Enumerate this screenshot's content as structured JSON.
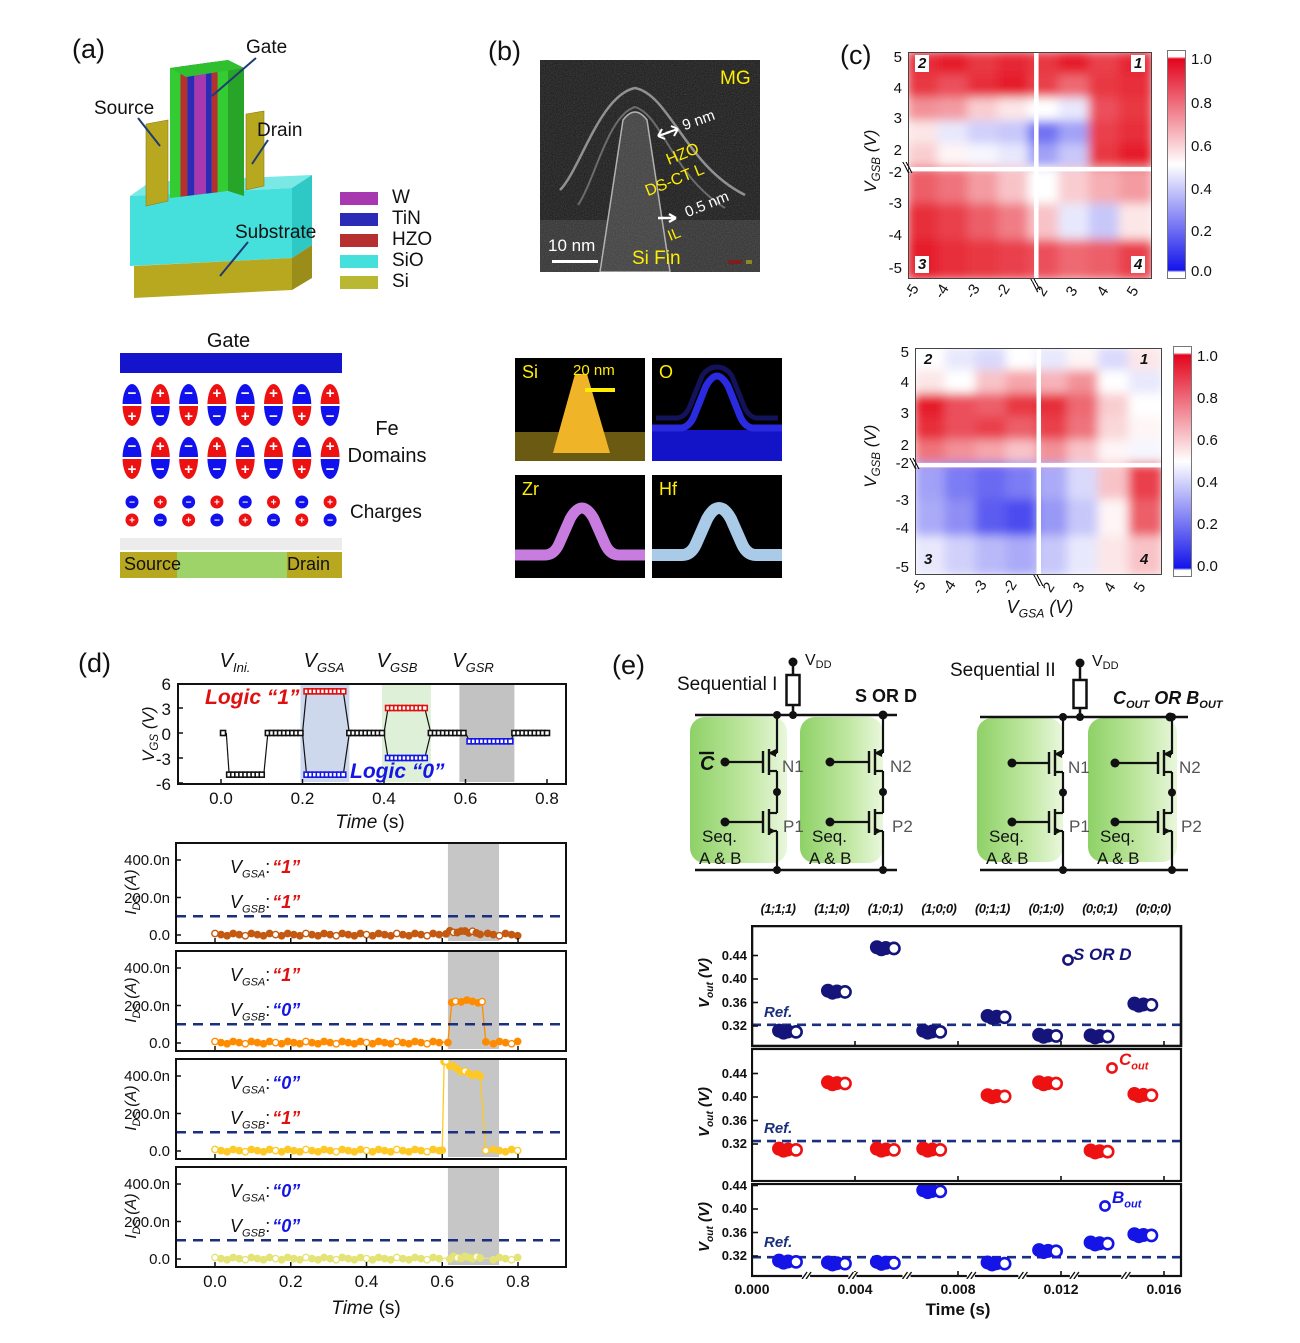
{
  "panel_a": {
    "label": "(a)",
    "device": {
      "gate": "Gate",
      "source": "Source",
      "drain": "Drain",
      "substrate": "Substrate"
    },
    "legend": [
      {
        "name": "W",
        "color": "#a838b0"
      },
      {
        "name": "TiN",
        "color": "#2b2bb8"
      },
      {
        "name": "HZO",
        "color": "#b73030"
      },
      {
        "name": "SiO",
        "color": "#45e0dc"
      },
      {
        "name": "Si",
        "color": "#b8b832"
      }
    ],
    "schematic": {
      "gate": "Gate",
      "fe_label_1": "Fe",
      "fe_label_2": "Domains",
      "charges": "Charges",
      "source": "Source",
      "drain": "Drain",
      "pos_color": "#ee1111",
      "neg_color": "#1111ee",
      "gate_color": "#1414cc",
      "plus": "+",
      "minus": "−"
    }
  },
  "panel_b": {
    "label": "(b)",
    "tem": {
      "mg": "MG",
      "thickness": "9 nm",
      "hzo": "HZO",
      "dsct": "DS-CT L",
      "il_thickness": "0.5 nm",
      "il": "IL",
      "scalebar": "10 nm",
      "fin": "Si Fin"
    },
    "eds": {
      "scalebar": "20 nm",
      "tiles": [
        {
          "name": "Si",
          "color": "#f0b428"
        },
        {
          "name": "O",
          "color": "#1515cc"
        },
        {
          "name": "Zr",
          "color": "#c87ce0"
        },
        {
          "name": "Hf",
          "color": "#a9cbe8"
        }
      ]
    }
  },
  "panel_c": {
    "label": "(c)",
    "ylabel": {
      "main": "V",
      "sub": "GSB",
      "unit": " (V)"
    },
    "xlabel": {
      "main": "V",
      "sub": "GSA",
      "unit": " (V)"
    },
    "yticks_top": [
      "5",
      "4",
      "3",
      "2"
    ],
    "yticks_bottom": [
      "-2",
      "-3",
      "-4",
      "-5"
    ],
    "xticks": [
      "-5",
      "-4",
      "-3",
      "-2",
      "2",
      "3",
      "4",
      "5"
    ],
    "colorbar_ticks": [
      "1.0",
      "0.8",
      "0.6",
      "0.4",
      "0.2",
      "0.0"
    ],
    "quadrant_labels": [
      "2",
      "1",
      "3",
      "4"
    ]
  },
  "panel_d": {
    "label": "(d)",
    "phase_headers": [
      {
        "main": "V",
        "sub": "Ini."
      },
      {
        "main": "V",
        "sub": "GSA"
      },
      {
        "main": "V",
        "sub": "GSB"
      },
      {
        "main": "V",
        "sub": "GSR"
      }
    ],
    "logic1": "Logic “1”",
    "logic0": "Logic “0”",
    "ylabel": {
      "main": "V",
      "sub": "GS",
      "unit": " (V)"
    },
    "yticks": [
      "6",
      "3",
      "0",
      "-3",
      "-6"
    ],
    "xticks": [
      "0.0",
      "0.2",
      "0.4",
      "0.6",
      "0.8"
    ],
    "xlabel_italic": "Time",
    "xlabel_unit": " (s)",
    "ids_ylabel": {
      "main": "I",
      "sub": "DS",
      "unit": " (A)"
    },
    "ids_yticks": [
      "400.0n",
      "200.0n",
      "0.0"
    ],
    "ids_annotation_prefix": {
      "main": "V",
      "sub_a": "GSA",
      "sub_b": "GSB",
      "colon": ":"
    },
    "ids_panels": [
      {
        "vgsa": "“1”",
        "vgsa_color": "#e01010",
        "vgsb": "“1”",
        "vgsb_color": "#e01010"
      },
      {
        "vgsa": "“1”",
        "vgsa_color": "#e01010",
        "vgsb": "“0”",
        "vgsb_color": "#1515e6"
      },
      {
        "vgsa": "“0”",
        "vgsa_color": "#1515e6",
        "vgsb": "“1”",
        "vgsb_color": "#e01010"
      },
      {
        "vgsa": "“0”",
        "vgsa_color": "#1515e6",
        "vgsb": "“0”",
        "vgsb_color": "#1515e6"
      }
    ]
  },
  "panel_e": {
    "label": "(e)",
    "circuits": [
      {
        "title": "Sequential I",
        "vdd_main": "V",
        "vdd_sub": "DD",
        "out_label": "S OR D",
        "left_input": "C",
        "n1": "N1",
        "n2": "N2",
        "p1": "P1",
        "p2": "P2",
        "seq": "Seq.",
        "ab": "A & B"
      },
      {
        "title": "Sequential II",
        "vdd_main": "V",
        "vdd_sub": "DD",
        "out_parts": [
          {
            "t": "C",
            "sub": "OUT"
          },
          {
            "t": " OR ",
            "sub": ""
          },
          {
            "t": "B",
            "sub": "OUT"
          }
        ],
        "n1": "N1",
        "n2": "N2",
        "p1": "P1",
        "p2": "P2",
        "seq": "Seq.",
        "ab": "A & B"
      }
    ],
    "state_headers": [
      "(1;1;1)",
      "(1;1;0)",
      "(1;0;1)",
      "(1;0;0)",
      "(0;1;1)",
      "(0;1;0)",
      "(0;0;1)",
      "(0;0;0)"
    ],
    "ylabel": {
      "main": "V",
      "sub": "out",
      "unit": " (V)"
    },
    "ref_label": "Ref.",
    "xlabel_bold": "Time (s)",
    "legends": [
      {
        "main": "S OR D",
        "sub": "",
        "color": "#14147a"
      },
      {
        "main": "C",
        "sub": "out",
        "color": "#ee1111"
      },
      {
        "main": "B",
        "sub": "out",
        "color": "#1414e6"
      }
    ]
  },
  "chart_data": [
    {
      "id": "memory_window_map_top",
      "type": "heatmap",
      "xlabel": "V_GSA (V)",
      "ylabel": "V_GSB (V)",
      "zlim": [
        0,
        1
      ],
      "x_values": [
        -5,
        -4,
        -3,
        -2,
        2,
        3,
        4,
        5
      ],
      "y_values": [
        5,
        4,
        3,
        2.5,
        2,
        -2,
        -3.5,
        -5
      ],
      "values": [
        [
          0.92,
          0.95,
          0.9,
          0.93,
          0.9,
          0.95,
          0.88,
          0.93
        ],
        [
          0.9,
          0.85,
          0.92,
          0.95,
          0.88,
          0.8,
          0.9,
          0.92
        ],
        [
          0.72,
          0.7,
          0.6,
          0.55,
          0.5,
          0.45,
          0.85,
          0.9
        ],
        [
          0.55,
          0.45,
          0.4,
          0.38,
          0.2,
          0.3,
          0.88,
          0.92
        ],
        [
          0.6,
          0.52,
          0.48,
          0.45,
          0.3,
          0.38,
          0.9,
          0.95
        ],
        [
          0.82,
          0.78,
          0.7,
          0.62,
          0.5,
          0.6,
          0.66,
          0.7
        ],
        [
          0.92,
          0.88,
          0.82,
          0.76,
          0.62,
          0.45,
          0.38,
          0.55
        ],
        [
          0.95,
          0.92,
          0.9,
          0.88,
          0.85,
          0.8,
          0.82,
          0.88
        ]
      ]
    },
    {
      "id": "memory_window_map_bottom",
      "type": "heatmap",
      "xlabel": "V_GSA (V)",
      "ylabel": "V_GSB (V)",
      "zlim": [
        0,
        1
      ],
      "x_values": [
        -5,
        -4,
        -3,
        -2,
        2,
        3,
        4,
        5
      ],
      "y_values": [
        5,
        4,
        3,
        2.5,
        2,
        -2,
        -3.5,
        -5
      ],
      "values": [
        [
          0.5,
          0.45,
          0.42,
          0.5,
          0.45,
          0.52,
          0.42,
          0.55
        ],
        [
          0.55,
          0.5,
          0.62,
          0.68,
          0.65,
          0.72,
          0.5,
          0.45
        ],
        [
          0.95,
          0.85,
          0.82,
          0.9,
          0.92,
          0.8,
          0.6,
          0.5
        ],
        [
          0.92,
          0.85,
          0.88,
          0.82,
          0.88,
          0.78,
          0.58,
          0.52
        ],
        [
          0.78,
          0.72,
          0.68,
          0.62,
          0.72,
          0.62,
          0.52,
          0.48
        ],
        [
          0.3,
          0.22,
          0.18,
          0.22,
          0.32,
          0.42,
          0.62,
          0.88
        ],
        [
          0.32,
          0.26,
          0.15,
          0.12,
          0.28,
          0.38,
          0.52,
          0.82
        ],
        [
          0.45,
          0.4,
          0.35,
          0.32,
          0.38,
          0.45,
          0.55,
          0.62
        ]
      ]
    },
    {
      "id": "vgs_waveform",
      "type": "line",
      "xlabel": "Time (s)",
      "ylabel": "V_GS (V)",
      "xlim": [
        -0.105,
        0.855
      ],
      "ylim": [
        -6,
        6
      ],
      "xticks": [
        0,
        0.2,
        0.4,
        0.6,
        0.8
      ],
      "yticks": [
        6,
        3,
        0,
        -3,
        -6
      ],
      "bands": [
        {
          "t0": 0.195,
          "t1": 0.315,
          "color": "#cdd8ec"
        },
        {
          "t0": 0.395,
          "t1": 0.515,
          "color": "#def0d8"
        },
        {
          "t0": 0.585,
          "t1": 0.72,
          "color": "#c2c2c2"
        }
      ],
      "plateaus": [
        {
          "color": "#111111",
          "level": 0,
          "t0": 0.005,
          "t1": 0.013
        },
        {
          "color": "#111111",
          "level": -5,
          "t0": 0.02,
          "t1": 0.105
        },
        {
          "color": "#111111",
          "level": 0,
          "t0": 0.115,
          "t1": 0.2
        },
        {
          "color": "#e01010",
          "level": 5,
          "t0": 0.21,
          "t1": 0.3
        },
        {
          "color": "#1515e6",
          "level": -5,
          "t0": 0.21,
          "t1": 0.3
        },
        {
          "color": "#111111",
          "level": 0,
          "t0": 0.315,
          "t1": 0.4
        },
        {
          "color": "#e01010",
          "level": 3,
          "t0": 0.41,
          "t1": 0.5
        },
        {
          "color": "#1515e6",
          "level": -3,
          "t0": 0.41,
          "t1": 0.5
        },
        {
          "color": "#111111",
          "level": 0,
          "t0": 0.515,
          "t1": 0.6
        },
        {
          "color": "#1515e6",
          "level": -1,
          "t0": 0.61,
          "t1": 0.71
        },
        {
          "color": "#111111",
          "level": 0,
          "t0": 0.72,
          "t1": 0.8
        }
      ],
      "connectors": [
        [
          0.013,
          0,
          0.02,
          -5
        ],
        [
          0.105,
          -5,
          0.115,
          0
        ],
        [
          0.2,
          0,
          0.21,
          5
        ],
        [
          0.2,
          0,
          0.21,
          -5
        ],
        [
          0.3,
          5,
          0.315,
          0
        ],
        [
          0.3,
          -5,
          0.315,
          0
        ],
        [
          0.4,
          0,
          0.41,
          3
        ],
        [
          0.4,
          0,
          0.41,
          -3
        ],
        [
          0.5,
          3,
          0.515,
          0
        ],
        [
          0.5,
          -3,
          0.515,
          0
        ],
        [
          0.6,
          0,
          0.61,
          -1
        ],
        [
          0.71,
          -1,
          0.72,
          0
        ]
      ]
    },
    {
      "id": "ids_vs_time",
      "type": "line",
      "xlabel": "Time (s)",
      "ylabel": "I_DS (A)",
      "xticks": [
        0,
        0.2,
        0.4,
        0.6,
        0.8
      ],
      "yticks_nA": [
        400,
        200,
        0
      ],
      "ref_nA": 100,
      "ref_color": "#1a2f7e",
      "gray_band": [
        0.615,
        0.75
      ],
      "panels": [
        {
          "color": "#c45911",
          "baseline_nA": 2,
          "peak": [
            [
              0.61,
              12
            ],
            [
              0.62,
              17
            ],
            [
              0.63,
              14
            ],
            [
              0.64,
              19
            ],
            [
              0.65,
              15
            ],
            [
              0.66,
              21
            ],
            [
              0.67,
              17
            ],
            [
              0.68,
              14
            ],
            [
              0.69,
              11
            ],
            [
              0.7,
              9
            ],
            [
              0.72,
              3
            ]
          ]
        },
        {
          "color": "#ff8c00",
          "baseline_nA": 2,
          "peak": [
            [
              0.615,
              8
            ],
            [
              0.625,
              210
            ],
            [
              0.635,
              222
            ],
            [
              0.65,
              225
            ],
            [
              0.665,
              223
            ],
            [
              0.68,
              222
            ],
            [
              0.695,
              220
            ],
            [
              0.705,
              215
            ],
            [
              0.715,
              6
            ]
          ]
        },
        {
          "color": "#fec926",
          "baseline_nA": 2,
          "peak": [
            [
              0.6,
              10
            ],
            [
              0.605,
              470
            ],
            [
              0.61,
              478
            ],
            [
              0.62,
              458
            ],
            [
              0.63,
              447
            ],
            [
              0.64,
              437
            ],
            [
              0.65,
              428
            ],
            [
              0.66,
              420
            ],
            [
              0.67,
              414
            ],
            [
              0.68,
              409
            ],
            [
              0.69,
              405
            ],
            [
              0.7,
              399
            ],
            [
              0.715,
              8
            ]
          ]
        },
        {
          "color": "#e4e476",
          "baseline_nA": 2,
          "peak": [
            [
              0.62,
              6
            ],
            [
              0.63,
              8
            ],
            [
              0.64,
              7
            ],
            [
              0.65,
              9
            ],
            [
              0.66,
              8
            ],
            [
              0.67,
              8
            ],
            [
              0.68,
              7
            ],
            [
              0.69,
              6
            ],
            [
              0.7,
              5
            ]
          ]
        }
      ]
    },
    {
      "id": "vout_scatter",
      "type": "scatter",
      "xlabel": "Time (s)",
      "ylabel": "V_out (V)",
      "categories": [
        "(1;1;1)",
        "(1;1;0)",
        "(1;0;1)",
        "(1;0;0)",
        "(0;1;1)",
        "(0;1;0)",
        "(0;0;1)",
        "(0;0;0)"
      ],
      "times_s": [
        0.0014,
        0.0033,
        0.0052,
        0.007,
        0.0095,
        0.0115,
        0.0135,
        0.0152
      ],
      "xlim": [
        0,
        0.0167
      ],
      "xticks_s": [
        0,
        0.004,
        0.008,
        0.012,
        0.016
      ],
      "yticks_V": [
        0.44,
        0.4,
        0.36,
        0.32
      ],
      "axis_breaks_s": [
        0.0021,
        0.0039,
        0.006,
        0.0085,
        0.0105,
        0.0125,
        0.0145
      ],
      "series": [
        {
          "name": "S OR D",
          "color": "#14147a",
          "ref_V": 0.322,
          "values_V": [
            0.31,
            0.378,
            0.452,
            0.31,
            0.335,
            0.303,
            0.302,
            0.356
          ]
        },
        {
          "name": "Cout",
          "color": "#ee1111",
          "ref_V": 0.325,
          "values_V": [
            0.31,
            0.423,
            0.31,
            0.31,
            0.401,
            0.423,
            0.307,
            0.403
          ]
        },
        {
          "name": "Bout",
          "color": "#1414e6",
          "ref_V": 0.318,
          "values_V": [
            0.31,
            0.307,
            0.308,
            0.43,
            0.307,
            0.328,
            0.341,
            0.355
          ]
        }
      ]
    }
  ]
}
